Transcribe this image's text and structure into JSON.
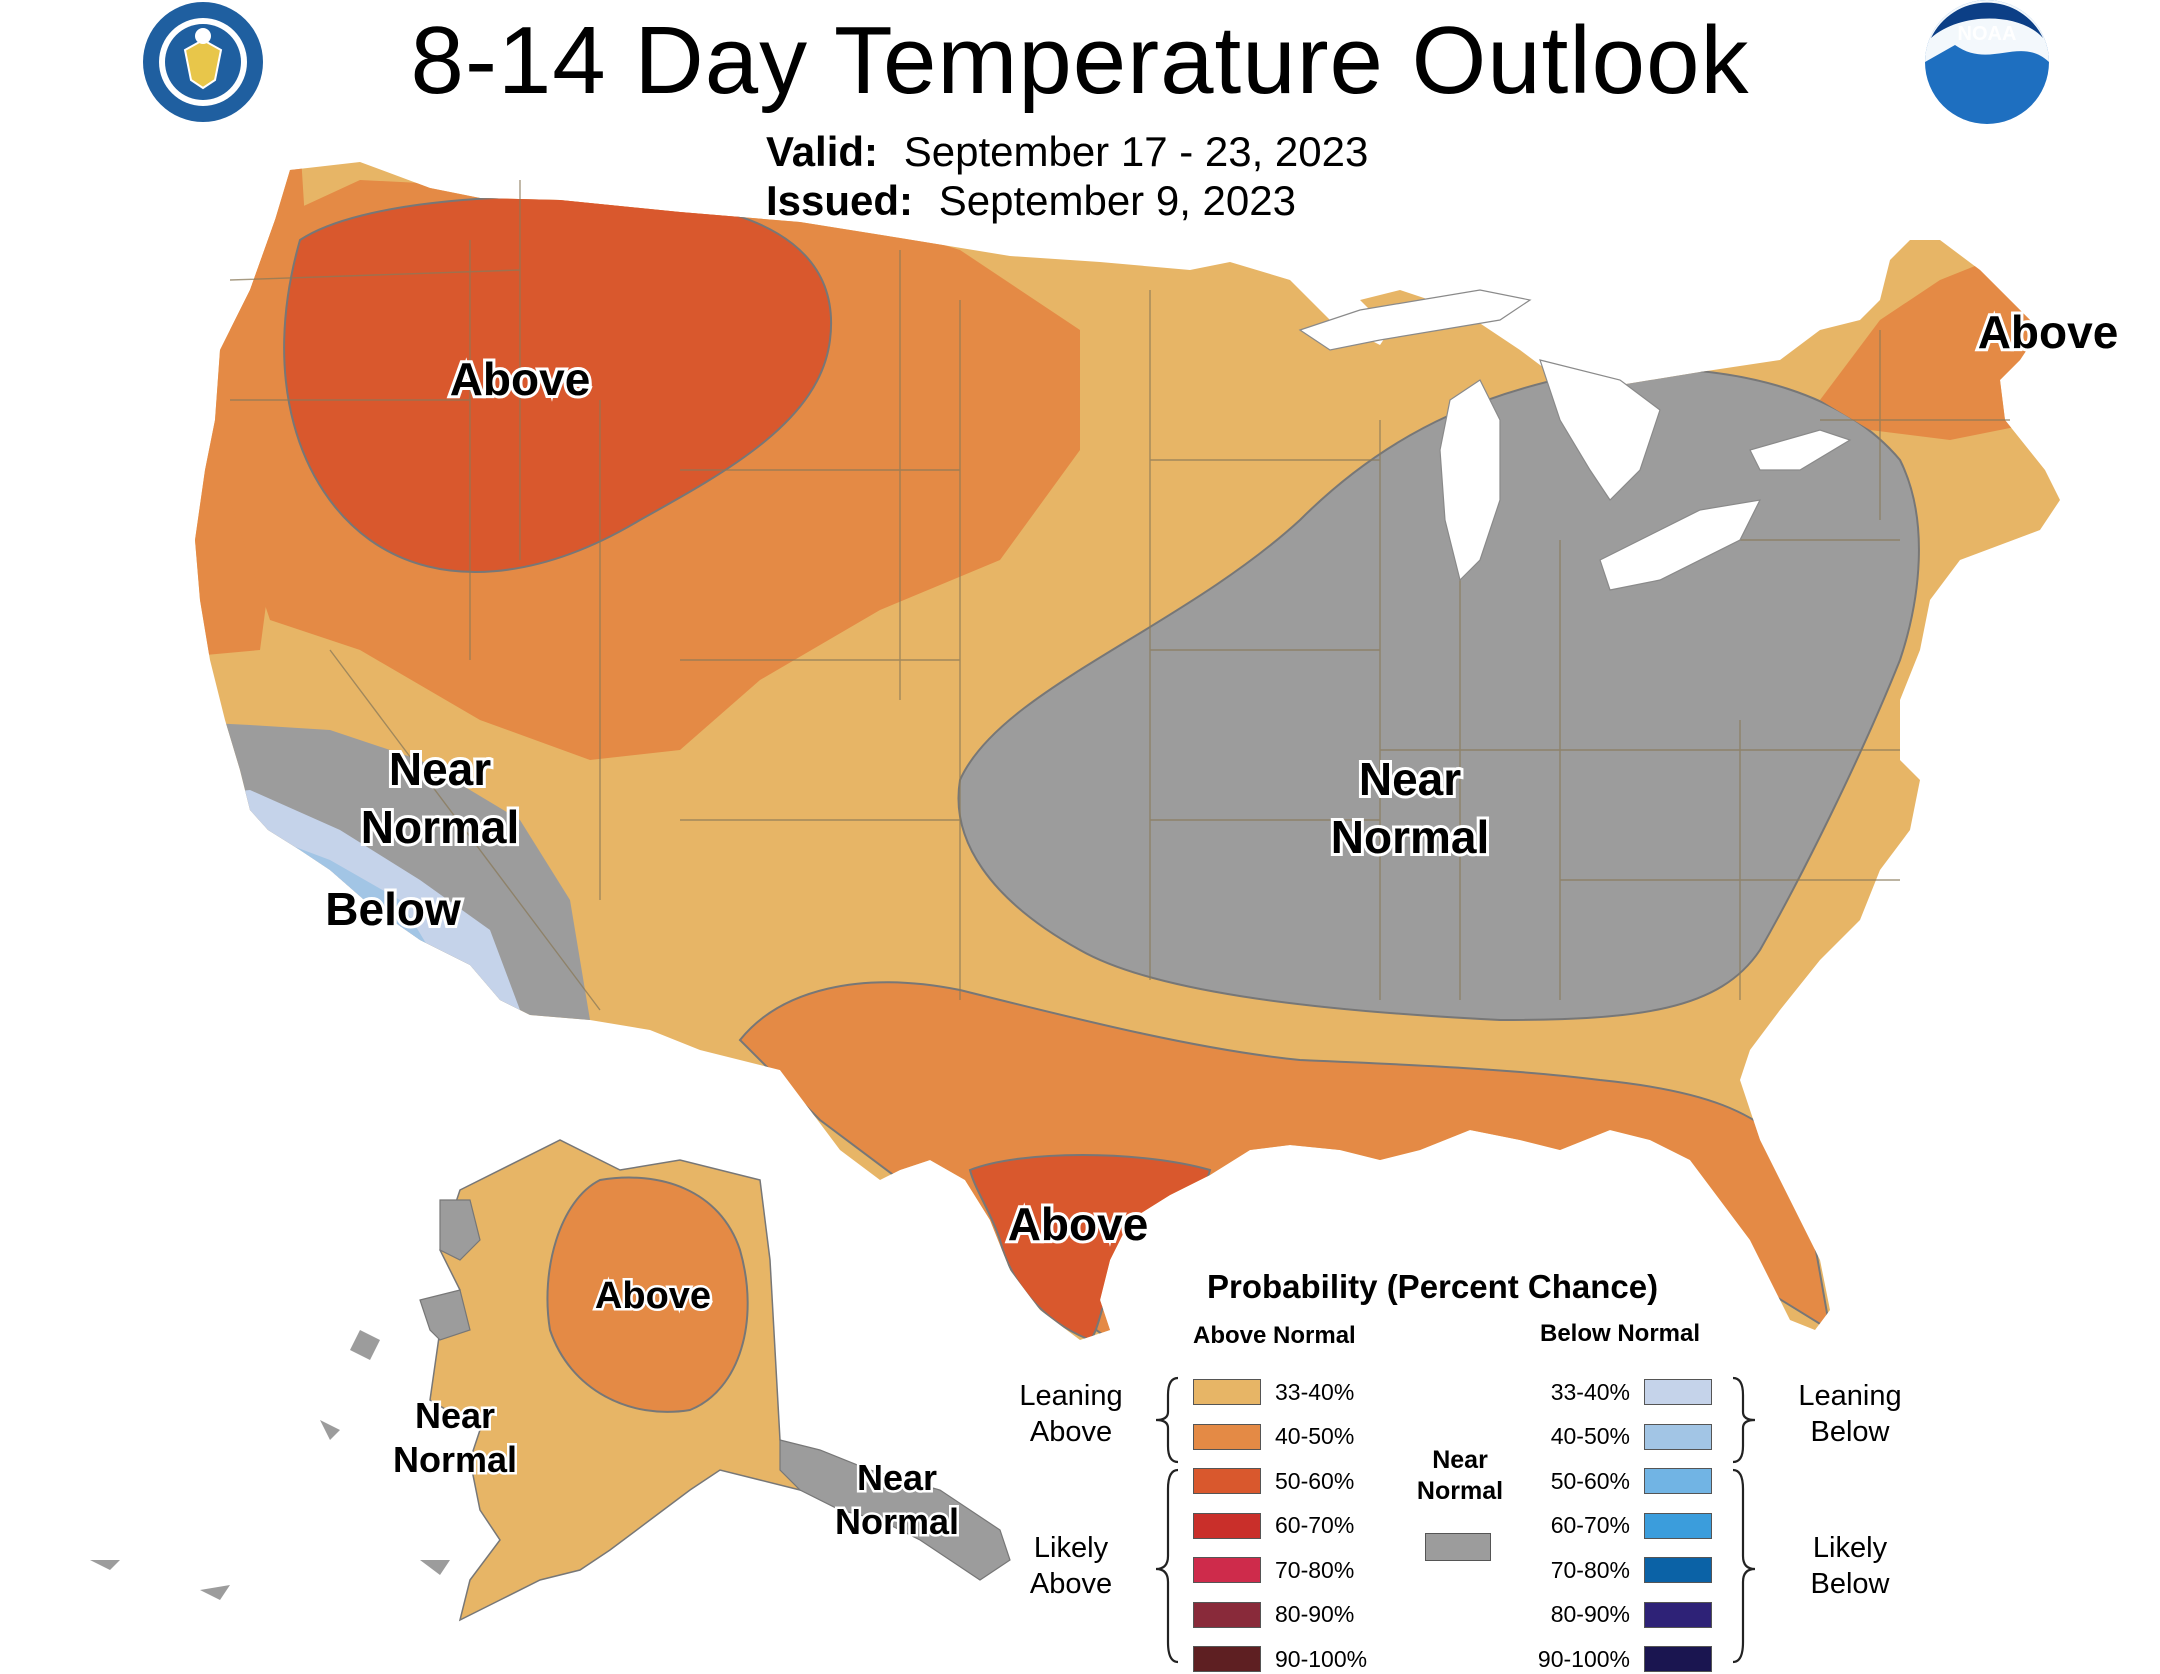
{
  "header": {
    "title": "8-14 Day Temperature Outlook",
    "valid_label": "Valid:",
    "valid_value": "September 17 - 23, 2023",
    "issued_label": "Issued:",
    "issued_value": "September 9, 2023"
  },
  "logos": {
    "left": "department-of-commerce-seal-icon",
    "right": "noaa-logo-icon",
    "noaa_text": "NOAA"
  },
  "map_labels": {
    "northwest": "Above",
    "west_near_1": "Near",
    "west_near_2": "Normal",
    "southwest_below": "Below",
    "central_near_1": "Near",
    "central_near_2": "Normal",
    "maine": "Above",
    "texas": "Above",
    "alaska_above": "Above",
    "alaska_west_1": "Near",
    "alaska_west_2": "Normal",
    "alaska_south_1": "Near",
    "alaska_south_2": "Normal"
  },
  "legend": {
    "title": "Probability (Percent Chance)",
    "above_header": "Above Normal",
    "below_header": "Below Normal",
    "near_label_1": "Near",
    "near_label_2": "Normal",
    "leaning_above_1": "Leaning",
    "leaning_above_2": "Above",
    "likely_above_1": "Likely",
    "likely_above_2": "Above",
    "leaning_below_1": "Leaning",
    "leaning_below_2": "Below",
    "likely_below_1": "Likely",
    "likely_below_2": "Below",
    "above": [
      {
        "label": "33-40%",
        "color": "#E7B566"
      },
      {
        "label": "40-50%",
        "color": "#E48A45"
      },
      {
        "label": "50-60%",
        "color": "#D9582D"
      },
      {
        "label": "60-70%",
        "color": "#C92F2A"
      },
      {
        "label": "70-80%",
        "color": "#CE2B4B"
      },
      {
        "label": "80-90%",
        "color": "#892A3A"
      },
      {
        "label": "90-100%",
        "color": "#5E1F22"
      }
    ],
    "below": [
      {
        "label": "33-40%",
        "color": "#C5D3EA"
      },
      {
        "label": "40-50%",
        "color": "#A2C5E5"
      },
      {
        "label": "50-60%",
        "color": "#71B4E4"
      },
      {
        "label": "60-70%",
        "color": "#3B9DDC"
      },
      {
        "label": "70-80%",
        "color": "#0B62A6"
      },
      {
        "label": "80-90%",
        "color": "#2E2277"
      },
      {
        "label": "90-100%",
        "color": "#1A1550"
      }
    ],
    "near_color": "#9C9C9C"
  }
}
